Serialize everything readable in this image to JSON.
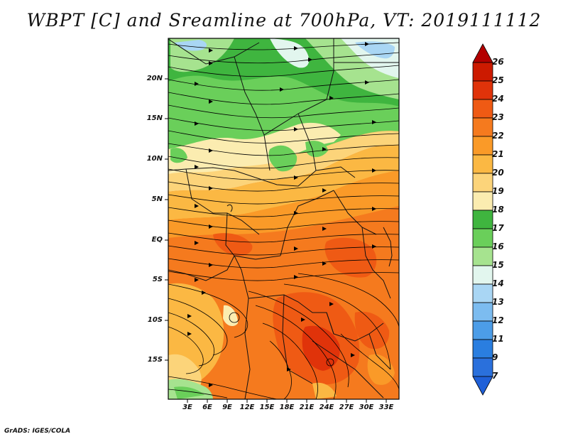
{
  "title": "WBPT [C] and Sreamline at 700hPa, VT: 2019111112",
  "footer": "GrADS: IGES/COLA",
  "map": {
    "lat_labels": [
      "20N",
      "15N",
      "10N",
      "5N",
      "EQ",
      "5S",
      "10S",
      "15S"
    ],
    "lon_labels": [
      "3E",
      "6E",
      "9E",
      "12E",
      "15E",
      "18E",
      "21E",
      "24E",
      "27E",
      "30E",
      "33E"
    ]
  },
  "colorbar": {
    "labels": [
      "26",
      "25",
      "24",
      "23",
      "22",
      "21",
      "20",
      "19",
      "18",
      "17",
      "16",
      "15",
      "14",
      "13",
      "12",
      "11",
      "9",
      "7"
    ],
    "colors": [
      "#b30000",
      "#cc1a00",
      "#e0330a",
      "#ef5a14",
      "#f57a1e",
      "#fa9a28",
      "#fbb843",
      "#fcd47a",
      "#fbecb0",
      "#3fb53f",
      "#6acf5a",
      "#a6e38f",
      "#e2f6ee",
      "#a9d6f4",
      "#7cbcf0",
      "#4c9de8",
      "#2a7ee0",
      "#1f60d8"
    ]
  }
}
